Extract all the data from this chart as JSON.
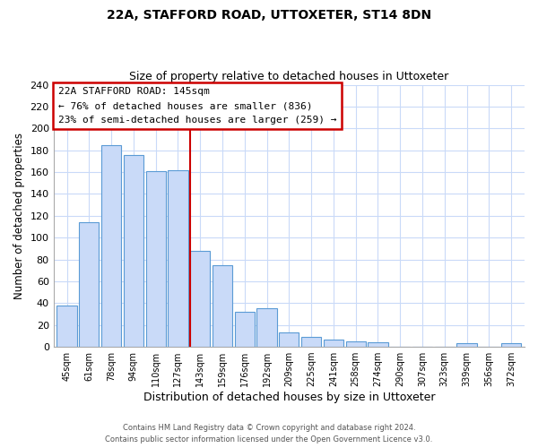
{
  "title": "22A, STAFFORD ROAD, UTTOXETER, ST14 8DN",
  "subtitle": "Size of property relative to detached houses in Uttoxeter",
  "xlabel": "Distribution of detached houses by size in Uttoxeter",
  "ylabel": "Number of detached properties",
  "bar_labels": [
    "45sqm",
    "61sqm",
    "78sqm",
    "94sqm",
    "110sqm",
    "127sqm",
    "143sqm",
    "159sqm",
    "176sqm",
    "192sqm",
    "209sqm",
    "225sqm",
    "241sqm",
    "258sqm",
    "274sqm",
    "290sqm",
    "307sqm",
    "323sqm",
    "339sqm",
    "356sqm",
    "372sqm"
  ],
  "bar_values": [
    38,
    114,
    185,
    176,
    161,
    162,
    88,
    75,
    32,
    35,
    13,
    9,
    7,
    5,
    4,
    0,
    0,
    0,
    3,
    0,
    3
  ],
  "bar_color_default": "#c9daf8",
  "bar_edge_color": "#5b9bd5",
  "highlight_bar_index": 6,
  "highlight_line_color": "#cc0000",
  "annotation_title": "22A STAFFORD ROAD: 145sqm",
  "annotation_line1": "← 76% of detached houses are smaller (836)",
  "annotation_line2": "23% of semi-detached houses are larger (259) →",
  "annotation_box_color": "#ffffff",
  "annotation_box_edge": "#cc0000",
  "ylim": [
    0,
    240
  ],
  "yticks": [
    0,
    20,
    40,
    60,
    80,
    100,
    120,
    140,
    160,
    180,
    200,
    220,
    240
  ],
  "background_color": "#ffffff",
  "grid_color": "#c9daf8",
  "footer_line1": "Contains HM Land Registry data © Crown copyright and database right 2024.",
  "footer_line2": "Contains public sector information licensed under the Open Government Licence v3.0."
}
